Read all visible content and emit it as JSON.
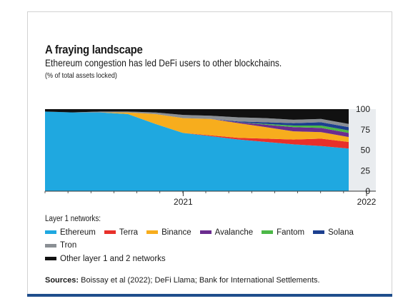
{
  "header": {
    "title": "A fraying landscape",
    "subtitle": "Ethereum congestion has led DeFi users to other blockchains.",
    "note": "(% of total assets locked)"
  },
  "legend": {
    "title": "Layer 1 networks:",
    "items": [
      {
        "label": "Ethereum",
        "color": "#1fa8e0"
      },
      {
        "label": "Terra",
        "color": "#e8302a"
      },
      {
        "label": "Binance",
        "color": "#f7ad1d"
      },
      {
        "label": "Avalanche",
        "color": "#6b2c8f"
      },
      {
        "label": "Fantom",
        "color": "#4cb848"
      },
      {
        "label": "Solana",
        "color": "#1c3f8f"
      },
      {
        "label": "Tron",
        "color": "#8a8f94"
      },
      {
        "label": "Other layer 1 and 2 networks",
        "color": "#111111"
      }
    ]
  },
  "sources": {
    "label": "Sources:",
    "text": "Boissay et al (2022); DeFi Llama; Bank for International Settlements."
  },
  "chart_data": {
    "type": "area",
    "stacked": true,
    "x": [
      "2020-01",
      "2020-03",
      "2020-06",
      "2020-08",
      "2020-10",
      "2020-12",
      "2021-02",
      "2021-04",
      "2021-06",
      "2021-08",
      "2021-10",
      "2021-12"
    ],
    "x_tick_labels": [
      "2021",
      "2022"
    ],
    "y_tick_labels": [
      "0",
      "25",
      "50",
      "75",
      "100"
    ],
    "ylim": [
      0,
      100
    ],
    "y_axis_position": "right",
    "series": [
      {
        "name": "Ethereum",
        "values": [
          97,
          96,
          96,
          94,
          82,
          71,
          67,
          63,
          60,
          57,
          55,
          52
        ]
      },
      {
        "name": "Terra",
        "values": [
          0,
          0,
          0,
          0,
          0,
          0,
          1,
          2,
          4,
          6,
          9,
          8
        ]
      },
      {
        "name": "Binance",
        "values": [
          0,
          0,
          0,
          2,
          12,
          18,
          20,
          18,
          14,
          10,
          8,
          6
        ]
      },
      {
        "name": "Avalanche",
        "values": [
          0,
          0,
          0,
          0,
          0,
          0,
          0,
          1,
          3,
          5,
          5,
          5
        ]
      },
      {
        "name": "Fantom",
        "values": [
          0,
          0,
          0,
          0,
          0,
          0,
          0,
          0,
          1,
          2,
          3,
          3
        ]
      },
      {
        "name": "Solana",
        "values": [
          0,
          0,
          0,
          0,
          0,
          0,
          0,
          1,
          2,
          3,
          4,
          4
        ]
      },
      {
        "name": "Tron",
        "values": [
          0,
          0,
          1,
          1,
          2,
          4,
          4,
          5,
          5,
          4,
          4,
          4
        ]
      },
      {
        "name": "Other layer 1 and 2 networks",
        "values": [
          3,
          4,
          3,
          3,
          4,
          7,
          8,
          10,
          11,
          13,
          12,
          18
        ]
      }
    ]
  }
}
